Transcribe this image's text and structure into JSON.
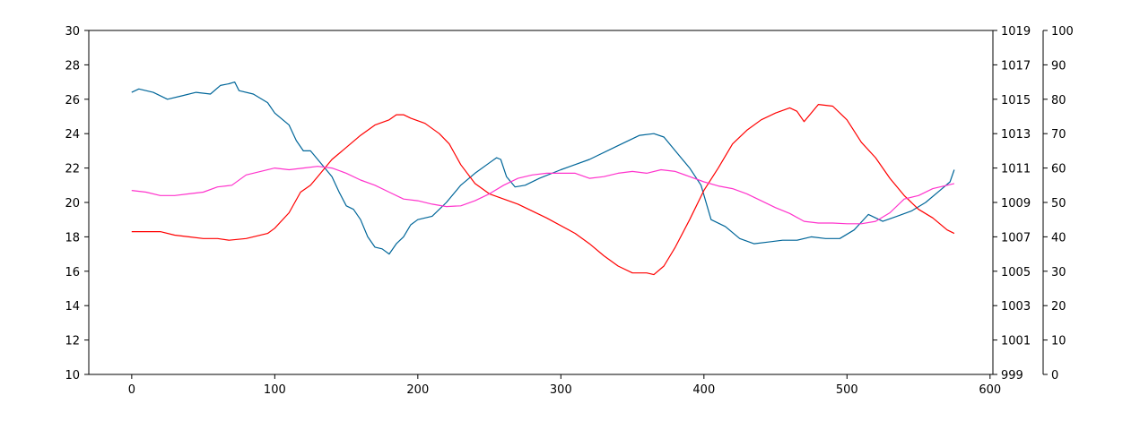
{
  "chart_data": {
    "type": "line",
    "title": "",
    "xlabel": "",
    "xlim": [
      -30,
      602
    ],
    "xticks": [
      "0",
      "100",
      "200",
      "300",
      "400",
      "500",
      "600"
    ],
    "grid": false,
    "legend": "none",
    "axes": [
      {
        "id": "left",
        "position": "left",
        "ylim": [
          10,
          30
        ],
        "ticks": [
          "10",
          "12",
          "14",
          "16",
          "18",
          "20",
          "22",
          "24",
          "26",
          "28",
          "30"
        ]
      },
      {
        "id": "right1",
        "position": "right",
        "ylim": [
          999,
          1019
        ],
        "ticks": [
          "999",
          "1001",
          "1003",
          "1005",
          "1007",
          "1009",
          "1011",
          "1013",
          "1015",
          "1017",
          "1019"
        ]
      },
      {
        "id": "right2",
        "position": "right-outer",
        "ylim": [
          0,
          100
        ],
        "ticks": [
          "0",
          "10",
          "20",
          "30",
          "40",
          "50",
          "60",
          "70",
          "80",
          "90",
          "100"
        ]
      }
    ],
    "series": [
      {
        "axis": "left",
        "color": "#006699",
        "x": [
          0,
          5,
          15,
          25,
          35,
          45,
          55,
          62,
          68,
          72,
          75,
          85,
          95,
          100,
          110,
          115,
          120,
          125,
          130,
          135,
          140,
          145,
          150,
          155,
          160,
          165,
          170,
          175,
          180,
          185,
          190,
          195,
          200,
          210,
          220,
          230,
          240,
          250,
          255,
          258,
          262,
          268,
          275,
          285,
          300,
          320,
          340,
          355,
          365,
          372,
          380,
          390,
          398,
          405,
          415,
          425,
          435,
          445,
          455,
          465,
          475,
          485,
          495,
          505,
          515,
          525,
          535,
          545,
          555,
          565,
          572,
          575
        ],
        "y": [
          26.4,
          26.6,
          26.4,
          26.0,
          26.2,
          26.4,
          26.3,
          26.8,
          26.9,
          27.0,
          26.5,
          26.3,
          25.8,
          25.2,
          24.5,
          23.6,
          23.0,
          23.0,
          22.5,
          22.0,
          21.5,
          20.6,
          19.8,
          19.6,
          19.0,
          18.0,
          17.4,
          17.3,
          17.0,
          17.6,
          18.0,
          18.7,
          19.0,
          19.2,
          20.0,
          21.0,
          21.7,
          22.3,
          22.6,
          22.5,
          21.5,
          20.9,
          21.0,
          21.4,
          21.9,
          22.5,
          23.3,
          23.9,
          24.0,
          23.8,
          23.0,
          22.0,
          21.0,
          19.0,
          18.6,
          17.9,
          17.6,
          17.7,
          17.8,
          17.8,
          18.0,
          17.9,
          17.9,
          18.4,
          19.3,
          18.9,
          19.2,
          19.5,
          20.0,
          20.7,
          21.2,
          21.9
        ]
      },
      {
        "axis": "right1",
        "color": "#ff0000",
        "x": [
          0,
          10,
          20,
          30,
          40,
          50,
          60,
          68,
          80,
          95,
          100,
          110,
          118,
          125,
          130,
          140,
          150,
          160,
          170,
          180,
          185,
          190,
          195,
          205,
          215,
          222,
          230,
          240,
          250,
          270,
          290,
          310,
          320,
          330,
          340,
          350,
          360,
          365,
          372,
          380,
          390,
          400,
          410,
          420,
          430,
          440,
          450,
          460,
          465,
          470,
          480,
          490,
          500,
          510,
          520,
          530,
          540,
          550,
          560,
          570,
          575
        ],
        "y": [
          1007.3,
          1007.3,
          1007.3,
          1007.1,
          1007.0,
          1006.9,
          1006.9,
          1006.8,
          1006.9,
          1007.2,
          1007.5,
          1008.4,
          1009.6,
          1010.0,
          1010.5,
          1011.5,
          1012.2,
          1012.9,
          1013.5,
          1013.8,
          1014.1,
          1014.1,
          1013.9,
          1013.6,
          1013.0,
          1012.4,
          1011.2,
          1010.1,
          1009.5,
          1008.9,
          1008.1,
          1007.2,
          1006.6,
          1005.9,
          1005.3,
          1004.9,
          1004.9,
          1004.8,
          1005.3,
          1006.4,
          1008.0,
          1009.7,
          1011.0,
          1012.4,
          1013.2,
          1013.8,
          1014.2,
          1014.5,
          1014.3,
          1013.7,
          1014.7,
          1014.6,
          1013.8,
          1012.5,
          1011.6,
          1010.4,
          1009.4,
          1008.6,
          1008.1,
          1007.4,
          1007.2
        ]
      },
      {
        "axis": "right2",
        "color": "#ff33cc",
        "x": [
          0,
          10,
          20,
          30,
          40,
          50,
          60,
          70,
          80,
          90,
          100,
          110,
          120,
          130,
          140,
          150,
          160,
          170,
          180,
          190,
          200,
          210,
          220,
          230,
          240,
          250,
          260,
          270,
          280,
          290,
          300,
          310,
          320,
          330,
          340,
          350,
          360,
          370,
          380,
          390,
          400,
          410,
          420,
          430,
          440,
          450,
          460,
          470,
          480,
          490,
          500,
          510,
          520,
          530,
          540,
          550,
          560,
          570,
          575
        ],
        "y": [
          53.5,
          53.0,
          52.0,
          52.0,
          52.5,
          53.0,
          54.5,
          55.0,
          58.0,
          59.0,
          60.0,
          59.5,
          60.0,
          60.5,
          60.0,
          58.5,
          56.5,
          55.0,
          53.0,
          51.0,
          50.5,
          49.5,
          48.8,
          49.0,
          50.5,
          52.5,
          55.0,
          57.0,
          58.0,
          58.5,
          58.5,
          58.5,
          57.0,
          57.5,
          58.5,
          59.0,
          58.5,
          59.5,
          59.0,
          57.5,
          56.0,
          54.8,
          54.0,
          52.5,
          50.5,
          48.5,
          46.8,
          44.5,
          44.0,
          44.0,
          43.8,
          43.8,
          44.5,
          47.0,
          51.0,
          52.0,
          54.0,
          55.0,
          55.5
        ]
      }
    ]
  }
}
